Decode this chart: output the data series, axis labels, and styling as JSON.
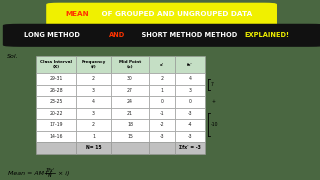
{
  "bg_color": "#4a6741",
  "title1_parts": [
    {
      "text": "MEAN",
      "color": "#ff3300"
    },
    {
      "text": " OF GROUPED AND UNGROUPED DATA",
      "color": "#ffffff"
    }
  ],
  "title1_bg": "#f0f000",
  "title2_parts": [
    {
      "text": "LONG METHOD ",
      "color": "#ffffff"
    },
    {
      "text": "AND",
      "color": "#ff3300"
    },
    {
      "text": "  SHORT METHOD METHOD ",
      "color": "#ffffff"
    },
    {
      "text": "EXPLAINED!",
      "color": "#f0f000"
    }
  ],
  "title2_bg": "#111111",
  "sol_text": "Sol.",
  "table_headers": [
    "Class Interval\n(X)",
    "Frequency\n(f)",
    "Mid Point\n(x)",
    "x'",
    "fx'"
  ],
  "table_data": [
    [
      "29-31",
      "2",
      "30",
      "2",
      "4"
    ],
    [
      "26-28",
      "3",
      "27",
      "1",
      "3"
    ],
    [
      "23-25",
      "4",
      "24",
      "0",
      "0"
    ],
    [
      "20-22",
      "3",
      "21",
      "-1",
      "-3"
    ],
    [
      "17-19",
      "2",
      "18",
      "-2",
      "-4"
    ],
    [
      "14-16",
      "1",
      "15",
      "-3",
      "-3"
    ]
  ],
  "table_footer_left": "N= 15",
  "table_footer_right": "Σfx' = -3",
  "formula_parts": [
    {
      "text": "Mean = AM+(",
      "style": "normal"
    },
    {
      "text": "Σfx'",
      "style": "num"
    },
    {
      "text": "N",
      "style": "den"
    },
    {
      "text": " × i)",
      "style": "normal"
    }
  ],
  "ann_pos": "7",
  "ann_zero": "+",
  "ann_neg": "-10",
  "header_bg": "#c5dfc5",
  "row_bg": "#ffffff",
  "footer_bg": "#c0c0c0",
  "alt_row_bg": "#eeeeee",
  "table_border": "#999999",
  "content_bg": "#f0ede0"
}
